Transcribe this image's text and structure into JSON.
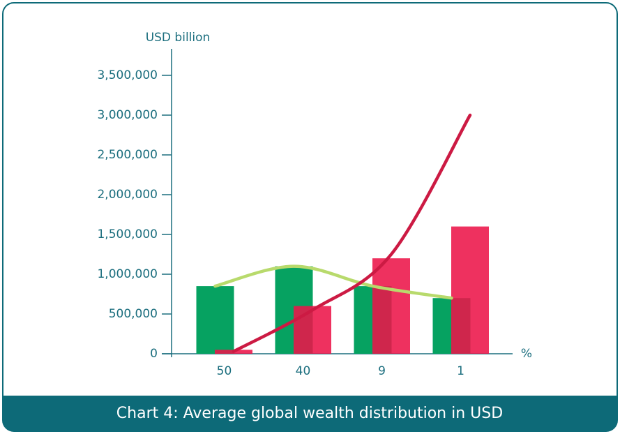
{
  "chart_data": {
    "type": "bar",
    "ylabel": "USD billion",
    "xlabel": "%",
    "categories": [
      "50",
      "40",
      "9",
      "1"
    ],
    "series": [
      {
        "type": "bar",
        "color": "#06a261",
        "values": [
          850000,
          1100000,
          850000,
          700000
        ]
      },
      {
        "type": "bar",
        "color": "#ec1549",
        "values": [
          50000,
          600000,
          1200000,
          1600000
        ]
      },
      {
        "type": "line",
        "color": "#b8da6c",
        "values": [
          850000,
          1100000,
          850000,
          700000
        ]
      },
      {
        "type": "line",
        "color": "#cc1a43",
        "values": [
          30000,
          550000,
          1250000,
          3000000
        ]
      }
    ],
    "ylim": [
      0,
      3500000
    ],
    "yticks": [
      0,
      {
        "value": 500000,
        "label": "500,000"
      },
      {
        "value": 1000000,
        "label": "1,000,000"
      },
      {
        "value": 1500000,
        "label": "1,500,000"
      },
      {
        "value": 2000000,
        "label": "2,000,000"
      },
      {
        "value": 2500000,
        "label": "2,500,000"
      },
      {
        "value": 3000000,
        "label": "3,000,000"
      },
      {
        "value": 3500000,
        "label": "3,500,000"
      }
    ]
  },
  "caption": "Chart 4: Average global wealth distribution in USD"
}
